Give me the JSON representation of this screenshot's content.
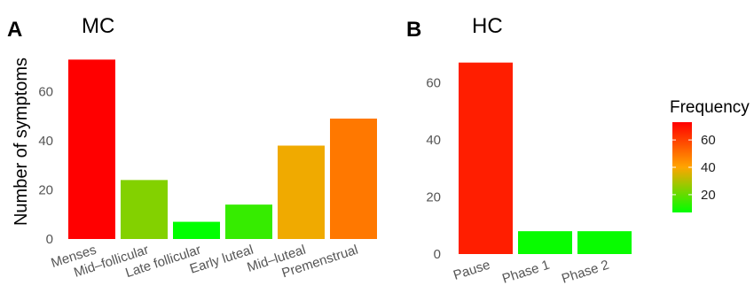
{
  "chart_data": [
    {
      "type": "bar",
      "panel_label": "A",
      "title": "MC",
      "ylabel": "Number of symptoms",
      "xlabel": "",
      "categories": [
        "Menses",
        "Mid–follicular",
        "Late follicular",
        "Early luteal",
        "Mid–luteal",
        "Premenstrual"
      ],
      "values": [
        73,
        24,
        7,
        14,
        38,
        49
      ],
      "yticks": [
        0,
        20,
        40,
        60
      ],
      "ylim": [
        0,
        76
      ],
      "grid": false,
      "fill_by": "Frequency"
    },
    {
      "type": "bar",
      "panel_label": "B",
      "title": "HC",
      "ylabel": "",
      "xlabel": "",
      "categories": [
        "Pause",
        "Phase 1",
        "Phase 2"
      ],
      "values": [
        67,
        8,
        8
      ],
      "yticks": [
        0,
        20,
        40,
        60
      ],
      "ylim": [
        0,
        70
      ],
      "grid": false,
      "fill_by": "Frequency"
    }
  ],
  "legend": {
    "title": "Frequency",
    "ticks": [
      20,
      40,
      60
    ],
    "range": [
      7,
      73
    ],
    "colors": [
      "#00ff00",
      "#ffa500",
      "#ff0000"
    ],
    "placement": "right"
  }
}
